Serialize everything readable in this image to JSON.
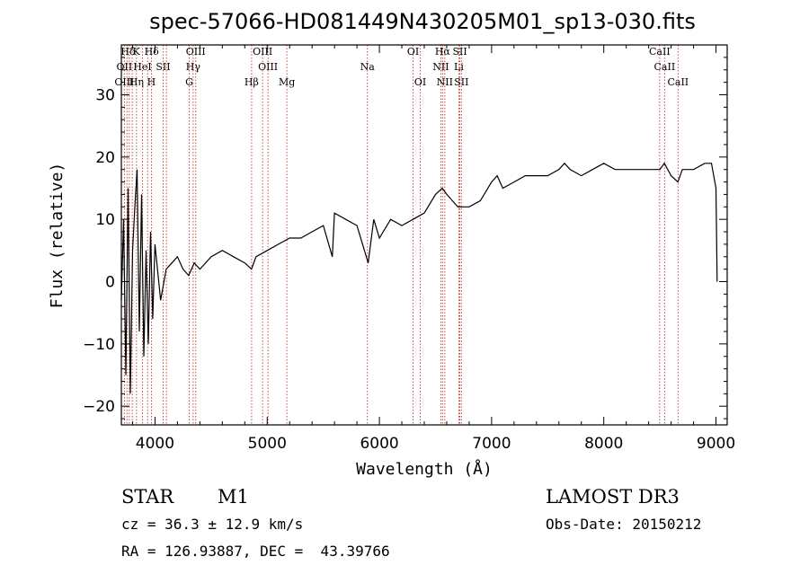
{
  "chart_data": {
    "type": "line",
    "title": "spec-57066-HD081449N430205M01_sp13-030.fits",
    "xlabel": "Wavelength (Å)",
    "ylabel": "Flux (relative)",
    "xlim": [
      3700,
      9100
    ],
    "ylim": [
      -23,
      38
    ],
    "xticks": [
      4000,
      5000,
      6000,
      7000,
      8000,
      9000
    ],
    "yticks": [
      -20,
      -10,
      0,
      10,
      20,
      30
    ],
    "grid": false,
    "series": [
      {
        "name": "flux",
        "x": [
          3700,
          3720,
          3740,
          3760,
          3780,
          3800,
          3820,
          3840,
          3860,
          3880,
          3900,
          3920,
          3940,
          3960,
          3980,
          4000,
          4050,
          4100,
          4150,
          4200,
          4250,
          4300,
          4350,
          4400,
          4500,
          4600,
          4700,
          4800,
          4860,
          4900,
          5000,
          5100,
          5200,
          5300,
          5400,
          5500,
          5580,
          5600,
          5700,
          5800,
          5900,
          5950,
          6000,
          6100,
          6200,
          6300,
          6400,
          6500,
          6560,
          6600,
          6700,
          6800,
          6900,
          7000,
          7050,
          7100,
          7200,
          7300,
          7400,
          7500,
          7600,
          7650,
          7700,
          7800,
          7900,
          8000,
          8100,
          8200,
          8300,
          8400,
          8500,
          8540,
          8600,
          8660,
          8700,
          8800,
          8900,
          8960,
          9000,
          9010
        ],
        "y": [
          -3,
          10,
          -15,
          15,
          -18,
          5,
          12,
          18,
          -8,
          14,
          -12,
          5,
          -10,
          8,
          -6,
          6,
          -3,
          2,
          3,
          4,
          2,
          1,
          3,
          2,
          4,
          5,
          4,
          3,
          2,
          4,
          5,
          6,
          7,
          7,
          8,
          9,
          4,
          11,
          10,
          9,
          3,
          10,
          7,
          10,
          9,
          10,
          11,
          14,
          15,
          14,
          12,
          12,
          13,
          16,
          17,
          15,
          16,
          17,
          17,
          17,
          18,
          19,
          18,
          17,
          18,
          19,
          18,
          18,
          18,
          18,
          18,
          19,
          17,
          16,
          18,
          18,
          19,
          19,
          15,
          0
        ]
      }
    ],
    "lines": [
      {
        "label": "Hδ",
        "x": 3760,
        "row": 0
      },
      {
        "label": "K",
        "x": 3834,
        "row": 0
      },
      {
        "label": "Hδ",
        "x": 3970,
        "row": 0
      },
      {
        "label": "OIII",
        "x": 4363,
        "row": 0
      },
      {
        "label": "OIII",
        "x": 4959,
        "row": 0
      },
      {
        "label": "OI",
        "x": 6300,
        "row": 0
      },
      {
        "label": "Hα",
        "x": 6563,
        "row": 0
      },
      {
        "label": "SII",
        "x": 6717,
        "row": 0
      },
      {
        "label": "CaII",
        "x": 8498,
        "row": 0
      },
      {
        "label": "OII",
        "x": 3727,
        "row": 1
      },
      {
        "label": "HeI",
        "x": 3888,
        "row": 1
      },
      {
        "label": "SII",
        "x": 4072,
        "row": 1
      },
      {
        "label": "Hγ",
        "x": 4340,
        "row": 1
      },
      {
        "label": "OIII",
        "x": 5007,
        "row": 1
      },
      {
        "label": "Na",
        "x": 5893,
        "row": 1
      },
      {
        "label": "NII",
        "x": 6548,
        "row": 1
      },
      {
        "label": "Li",
        "x": 6708,
        "row": 1
      },
      {
        "label": "CaII",
        "x": 8542,
        "row": 1
      },
      {
        "label": "OIII",
        "x": 3727,
        "row": 2
      },
      {
        "label": "Hη",
        "x": 3835,
        "row": 2
      },
      {
        "label": "H",
        "x": 3968,
        "row": 2
      },
      {
        "label": "G",
        "x": 4305,
        "row": 2
      },
      {
        "label": "Hβ",
        "x": 4861,
        "row": 2
      },
      {
        "label": "Mg",
        "x": 5175,
        "row": 2
      },
      {
        "label": "OI",
        "x": 6364,
        "row": 2
      },
      {
        "label": "NII",
        "x": 6583,
        "row": 2
      },
      {
        "label": "SII",
        "x": 6731,
        "row": 2
      },
      {
        "label": "CaII",
        "x": 8662,
        "row": 2
      }
    ],
    "line_markers_x": [
      3727,
      3750,
      3771,
      3797,
      3835,
      3889,
      3934,
      3968,
      4072,
      4102,
      4305,
      4340,
      4363,
      4861,
      4959,
      5007,
      5175,
      5893,
      6300,
      6364,
      6548,
      6563,
      6583,
      6708,
      6717,
      6731,
      8498,
      8542,
      8662
    ],
    "colors": {
      "spectrum": "#000000",
      "marker": "#c0392b",
      "axes": "#000000"
    }
  },
  "info": {
    "type": "STAR",
    "subclass": "M1",
    "survey": "LAMOST DR3",
    "cz": "cz = 36.3 ± 12.9 km/s",
    "obs_date": "Obs-Date: 20150212",
    "radec": "RA = 126.93887, DEC =  43.39766"
  }
}
